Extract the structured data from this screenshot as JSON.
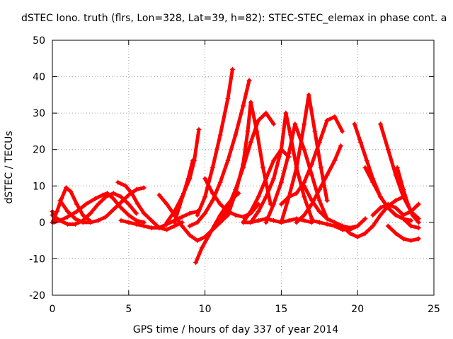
{
  "chart_data": {
    "type": "scatter",
    "title": "dSTEC Iono. truth (flrs, Lon=328, Lat=39, h=82): STEC-STEC_elemax in phase cont. a",
    "xlabel": "GPS time / hours of day 337 of year 2014",
    "ylabel": "dSTEC  / TECUs",
    "xlim": [
      0,
      25
    ],
    "ylim": [
      -20,
      50
    ],
    "xticks": [
      "0",
      "5",
      "10",
      "15",
      "20",
      "25"
    ],
    "yticks": [
      "-20",
      "-10",
      "0",
      "10",
      "20",
      "30",
      "40",
      "50"
    ],
    "grid": true,
    "marker": "+",
    "series_color": "#ff0000",
    "tracks": [
      {
        "x": [
          0.0,
          0.1,
          0.2
        ],
        "y": [
          3.0,
          1.5,
          0.3
        ]
      },
      {
        "x": [
          0.1,
          0.5,
          1.0,
          1.6,
          2.2,
          2.8,
          3.3,
          3.6,
          4.0,
          4.5,
          5.0,
          5.5,
          6.0
        ],
        "y": [
          0.0,
          0.5,
          1.5,
          3.0,
          5.0,
          6.5,
          7.5,
          8.0,
          6.5,
          4.0,
          2.0,
          0.5,
          0.0
        ]
      },
      {
        "x": [
          0.0,
          0.3,
          0.6,
          0.9,
          1.2,
          1.6,
          2.0,
          2.5
        ],
        "y": [
          0.0,
          3.0,
          6.5,
          9.5,
          8.5,
          5.0,
          2.0,
          0.3
        ]
      },
      {
        "x": [
          0.0,
          0.5,
          1.0,
          1.5,
          2.0,
          2.5,
          3.0,
          3.5,
          4.0,
          4.5,
          5.0,
          5.5
        ],
        "y": [
          2.0,
          0.5,
          -0.5,
          -0.5,
          0.5,
          2.5,
          5.0,
          7.0,
          8.0,
          7.0,
          5.0,
          2.5
        ]
      },
      {
        "x": [
          0.5,
          1.0,
          1.5,
          2.0,
          2.5,
          3.0,
          3.5,
          4.0,
          4.5,
          5.0,
          5.5,
          6.0
        ],
        "y": [
          6.0,
          3.0,
          1.0,
          0.0,
          0.0,
          0.5,
          1.5,
          3.5,
          5.5,
          7.5,
          9.0,
          9.5
        ]
      },
      {
        "x": [
          4.3,
          4.8,
          5.2,
          5.6,
          6.0,
          6.5,
          7.0,
          7.5,
          8.0,
          8.5
        ],
        "y": [
          11.0,
          10.0,
          8.0,
          5.0,
          2.5,
          0.5,
          -1.5,
          -2.0,
          -1.0,
          0.0
        ]
      },
      {
        "x": [
          4.5,
          5.0,
          5.5,
          6.0,
          6.5,
          7.0,
          7.5,
          8.0,
          8.5,
          9.0,
          9.5
        ],
        "y": [
          0.5,
          0.0,
          -0.5,
          -1.0,
          -1.5,
          -1.5,
          -0.5,
          0.5,
          1.5,
          2.5,
          3.0
        ]
      },
      {
        "x": [
          7.0,
          7.5,
          8.0,
          8.5,
          9.0,
          9.5,
          10.0,
          10.5,
          11.0,
          11.5
        ],
        "y": [
          7.5,
          5.0,
          2.0,
          -1.0,
          -3.5,
          -5.0,
          -4.0,
          -2.0,
          0.0,
          2.0
        ]
      },
      {
        "x": [
          7.5,
          8.0,
          8.5,
          9.0,
          9.3,
          9.6
        ],
        "y": [
          0.0,
          3.0,
          7.0,
          12.0,
          17.0,
          25.5
        ]
      },
      {
        "x": [
          8.0,
          8.3,
          8.6,
          8.9,
          9.2
        ],
        "y": [
          0.0,
          4.0,
          8.0,
          12.0,
          17.0
        ]
      },
      {
        "x": [
          9.4,
          9.8,
          10.2,
          10.6,
          11.0,
          11.4,
          11.8,
          12.2
        ],
        "y": [
          -11.0,
          -7.0,
          -4.0,
          -1.0,
          2.0,
          4.5,
          6.5,
          8.0
        ]
      },
      {
        "x": [
          9.5,
          10.0,
          10.5,
          11.0,
          11.5,
          11.8
        ],
        "y": [
          2.0,
          7.0,
          15.0,
          24.0,
          34.0,
          42.0
        ]
      },
      {
        "x": [
          9.0,
          9.5,
          10.0,
          10.5,
          11.0,
          11.5,
          12.0,
          12.5,
          12.9
        ],
        "y": [
          -1.0,
          0.0,
          2.5,
          6.0,
          11.0,
          17.0,
          24.0,
          32.0,
          39.0
        ]
      },
      {
        "x": [
          10.0,
          10.5,
          11.0,
          11.5,
          12.0,
          12.5,
          13.0,
          13.5
        ],
        "y": [
          12.0,
          8.0,
          5.0,
          3.0,
          2.0,
          1.5,
          2.5,
          5.0
        ]
      },
      {
        "x": [
          11.0,
          11.5,
          12.0,
          12.5,
          13.0,
          13.5,
          14.0,
          14.5
        ],
        "y": [
          0.0,
          4.0,
          9.0,
          15.0,
          22.0,
          28.0,
          30.0,
          27.0
        ]
      },
      {
        "x": [
          11.5,
          12.0,
          12.5,
          12.8,
          13.0,
          13.4,
          13.8,
          14.3
        ],
        "y": [
          2.0,
          8.0,
          16.0,
          25.0,
          33.0,
          25.0,
          15.0,
          5.0
        ]
      },
      {
        "x": [
          12.5,
          13.0,
          13.5,
          14.0,
          14.5,
          15.0,
          15.5
        ],
        "y": [
          0.0,
          3.0,
          7.0,
          12.0,
          17.0,
          20.0,
          18.0
        ]
      },
      {
        "x": [
          12.5,
          13.0,
          13.5,
          14.0,
          14.5,
          15.0,
          15.5,
          16.0,
          16.5,
          17.0
        ],
        "y": [
          0.0,
          0.0,
          0.5,
          1.0,
          0.5,
          0.0,
          0.5,
          1.0,
          0.5,
          0.0
        ]
      },
      {
        "x": [
          13.0,
          13.5,
          14.0,
          14.5,
          15.0,
          15.3,
          15.6,
          16.0,
          16.5,
          17.0
        ],
        "y": [
          0.0,
          3.0,
          7.0,
          12.0,
          20.0,
          30.0,
          24.0,
          15.0,
          7.0,
          1.0
        ]
      },
      {
        "x": [
          14.0,
          14.5,
          15.0,
          15.5,
          15.9,
          16.5,
          17.0,
          17.5,
          18.0
        ],
        "y": [
          0.0,
          5.0,
          11.0,
          19.0,
          27.0,
          20.0,
          13.0,
          6.0,
          1.0
        ]
      },
      {
        "x": [
          15.0,
          15.5,
          16.0,
          16.5,
          16.8,
          17.2,
          17.6,
          18.0
        ],
        "y": [
          0.0,
          7.0,
          15.0,
          27.0,
          35.0,
          25.0,
          15.0,
          6.0
        ]
      },
      {
        "x": [
          15.0,
          15.5,
          16.0,
          16.5,
          17.0,
          17.5,
          18.0,
          18.5,
          19.0
        ],
        "y": [
          5.0,
          7.0,
          8.0,
          11.0,
          16.0,
          22.0,
          28.0,
          29.0,
          25.0
        ]
      },
      {
        "x": [
          16.0,
          16.5,
          17.0,
          17.5,
          18.0,
          18.5,
          18.9
        ],
        "y": [
          0.0,
          2.0,
          5.0,
          9.0,
          13.0,
          17.0,
          21.0
        ]
      },
      {
        "x": [
          16.5,
          17.0,
          17.5,
          18.0,
          18.5,
          19.0,
          19.5,
          20.0
        ],
        "y": [
          10.0,
          6.0,
          3.0,
          1.0,
          0.0,
          -1.0,
          -1.5,
          -1.0
        ]
      },
      {
        "x": [
          17.0,
          17.5,
          18.0,
          18.5,
          19.0,
          19.5,
          20.0,
          20.5
        ],
        "y": [
          0.5,
          0.0,
          -0.5,
          -1.0,
          -2.0,
          -2.0,
          -1.0,
          1.0
        ]
      },
      {
        "x": [
          19.0,
          19.5,
          20.0,
          20.5,
          21.0,
          21.5,
          22.0,
          22.5,
          23.0
        ],
        "y": [
          -1.0,
          -3.0,
          -4.0,
          -3.0,
          -1.0,
          2.0,
          4.5,
          6.0,
          7.0
        ]
      },
      {
        "x": [
          19.8,
          20.2,
          20.6,
          21.0,
          21.5,
          22.0,
          22.5,
          23.0,
          23.5
        ],
        "y": [
          27.0,
          22.0,
          17.0,
          12.0,
          7.0,
          4.0,
          2.0,
          1.0,
          0.5
        ]
      },
      {
        "x": [
          20.5,
          21.0,
          21.5,
          22.0,
          22.5,
          23.0,
          23.5,
          24.0
        ],
        "y": [
          15.0,
          11.0,
          7.0,
          4.0,
          2.0,
          1.0,
          -1.0,
          -1.5
        ]
      },
      {
        "x": [
          21.5,
          22.0,
          22.5,
          23.0,
          23.5,
          24.0
        ],
        "y": [
          27.0,
          20.0,
          13.0,
          7.0,
          3.0,
          1.0
        ]
      },
      {
        "x": [
          22.6,
          23.0,
          23.3,
          23.6,
          24.0
        ],
        "y": [
          15.0,
          9.0,
          5.0,
          2.0,
          0.0
        ]
      },
      {
        "x": [
          22.0,
          22.5,
          23.0,
          23.5,
          24.0
        ],
        "y": [
          -1.0,
          -3.0,
          -4.5,
          -5.0,
          -4.5
        ]
      },
      {
        "x": [
          21.0,
          21.5,
          22.0,
          22.5,
          23.0,
          23.5,
          24.0
        ],
        "y": [
          2.0,
          4.0,
          5.0,
          4.0,
          2.0,
          3.0,
          5.0
        ]
      }
    ]
  }
}
